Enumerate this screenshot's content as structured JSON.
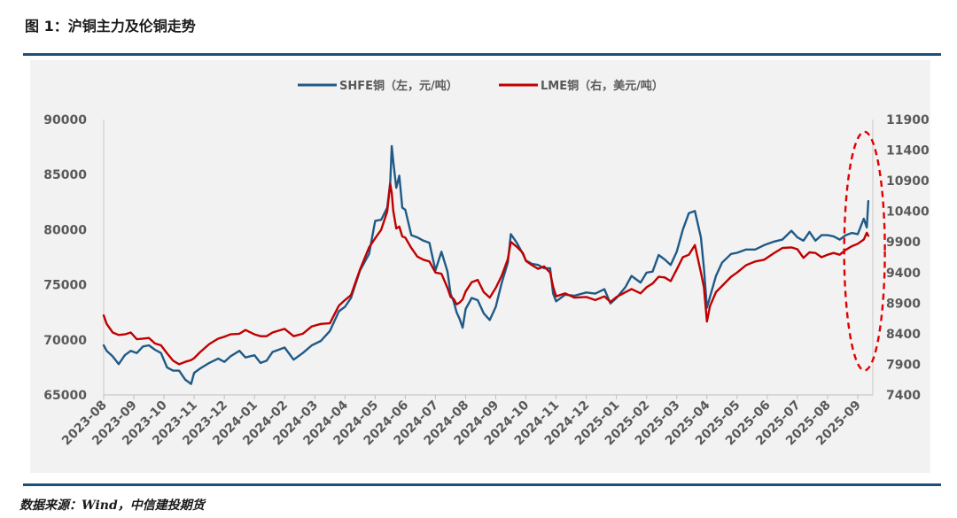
{
  "figure": {
    "title": "图 1：沪铜主力及伦铜走势",
    "source": "数据来源：Wind，中信建投期货"
  },
  "colors": {
    "shfe": "#1f5a87",
    "lme": "#c00000",
    "highlight": "#e00000",
    "rule": "#1f4e79",
    "panel": "#f2f2f2",
    "axis_text": "#595959"
  },
  "chart_data": {
    "type": "line",
    "title": "图 1：沪铜主力及伦铜走势",
    "legend_position": "top-center",
    "grid": false,
    "x_axis": {
      "categories": [
        "2023-08",
        "2023-09",
        "2023-10",
        "2023-11",
        "2023-12",
        "2024-01",
        "2024-02",
        "2024-03",
        "2024-04",
        "2024-05",
        "2024-06",
        "2024-07",
        "2024-08",
        "2024-09",
        "2024-10",
        "2024-11",
        "2024-12",
        "2025-01",
        "2025-02",
        "2025-03",
        "2025-04",
        "2025-05",
        "2025-06",
        "2025-07",
        "2025-08",
        "2025-09"
      ],
      "range": [
        0,
        25.5
      ]
    },
    "y_left": {
      "label": "左，元/吨",
      "min": 65000,
      "max": 90000,
      "ticks": [
        65000,
        70000,
        75000,
        80000,
        85000,
        90000
      ]
    },
    "y_right": {
      "label": "右，美元/吨",
      "min": 7400,
      "max": 11900,
      "ticks": [
        7400,
        7900,
        8400,
        8900,
        9400,
        9900,
        10400,
        10900,
        11400,
        11900
      ]
    },
    "series": [
      {
        "name": "SHFE铜（左，元/吨）",
        "axis": "left",
        "color": "#1f5a87",
        "points": [
          [
            0,
            69500
          ],
          [
            0.1,
            69000
          ],
          [
            0.3,
            68500
          ],
          [
            0.5,
            67800
          ],
          [
            0.7,
            68600
          ],
          [
            0.9,
            69000
          ],
          [
            1.1,
            68800
          ],
          [
            1.3,
            69400
          ],
          [
            1.5,
            69500
          ],
          [
            1.7,
            69100
          ],
          [
            1.9,
            68800
          ],
          [
            2.1,
            67500
          ],
          [
            2.3,
            67200
          ],
          [
            2.5,
            67200
          ],
          [
            2.7,
            66400
          ],
          [
            2.9,
            66000
          ],
          [
            3.0,
            67000
          ],
          [
            3.2,
            67400
          ],
          [
            3.5,
            67900
          ],
          [
            3.8,
            68300
          ],
          [
            4.0,
            68000
          ],
          [
            4.2,
            68500
          ],
          [
            4.5,
            69000
          ],
          [
            4.7,
            68400
          ],
          [
            5.0,
            68600
          ],
          [
            5.2,
            67900
          ],
          [
            5.4,
            68100
          ],
          [
            5.6,
            68900
          ],
          [
            6.0,
            69300
          ],
          [
            6.3,
            68200
          ],
          [
            6.6,
            68800
          ],
          [
            6.9,
            69500
          ],
          [
            7.2,
            69900
          ],
          [
            7.5,
            70800
          ],
          [
            7.8,
            72600
          ],
          [
            8.0,
            73000
          ],
          [
            8.2,
            73800
          ],
          [
            8.5,
            76300
          ],
          [
            8.8,
            77800
          ],
          [
            9.0,
            80800
          ],
          [
            9.2,
            80900
          ],
          [
            9.4,
            82000
          ],
          [
            9.5,
            84300
          ],
          [
            9.55,
            87600
          ],
          [
            9.6,
            86200
          ],
          [
            9.7,
            83800
          ],
          [
            9.8,
            84900
          ],
          [
            9.9,
            82000
          ],
          [
            10.0,
            81800
          ],
          [
            10.2,
            79500
          ],
          [
            10.4,
            79300
          ],
          [
            10.6,
            79000
          ],
          [
            10.8,
            78800
          ],
          [
            11.0,
            76300
          ],
          [
            11.2,
            78000
          ],
          [
            11.4,
            76200
          ],
          [
            11.5,
            74200
          ],
          [
            11.6,
            73500
          ],
          [
            11.7,
            72500
          ],
          [
            11.8,
            71900
          ],
          [
            11.9,
            71100
          ],
          [
            12.0,
            72800
          ],
          [
            12.2,
            73800
          ],
          [
            12.4,
            73600
          ],
          [
            12.6,
            72400
          ],
          [
            12.8,
            71800
          ],
          [
            13.0,
            73000
          ],
          [
            13.2,
            75200
          ],
          [
            13.4,
            77000
          ],
          [
            13.5,
            79600
          ],
          [
            13.7,
            78800
          ],
          [
            13.9,
            77800
          ],
          [
            14.0,
            77200
          ],
          [
            14.2,
            76900
          ],
          [
            14.4,
            76800
          ],
          [
            14.6,
            76500
          ],
          [
            14.8,
            76500
          ],
          [
            14.9,
            74200
          ],
          [
            15.0,
            73500
          ],
          [
            15.3,
            74100
          ],
          [
            15.6,
            74000
          ],
          [
            16.0,
            74300
          ],
          [
            16.3,
            74200
          ],
          [
            16.6,
            74600
          ],
          [
            16.8,
            73300
          ],
          [
            17.0,
            73800
          ],
          [
            17.3,
            74800
          ],
          [
            17.5,
            75800
          ],
          [
            17.8,
            75200
          ],
          [
            18.0,
            76100
          ],
          [
            18.2,
            76200
          ],
          [
            18.4,
            77700
          ],
          [
            18.6,
            77300
          ],
          [
            18.8,
            76800
          ],
          [
            19.0,
            78000
          ],
          [
            19.2,
            80000
          ],
          [
            19.4,
            81500
          ],
          [
            19.6,
            81700
          ],
          [
            19.8,
            79300
          ],
          [
            19.9,
            76500
          ],
          [
            20.0,
            72900
          ],
          [
            20.1,
            73900
          ],
          [
            20.3,
            75800
          ],
          [
            20.5,
            77000
          ],
          [
            20.8,
            77800
          ],
          [
            21.0,
            77900
          ],
          [
            21.3,
            78200
          ],
          [
            21.6,
            78200
          ],
          [
            21.9,
            78600
          ],
          [
            22.2,
            78900
          ],
          [
            22.5,
            79100
          ],
          [
            22.8,
            79900
          ],
          [
            23.0,
            79300
          ],
          [
            23.2,
            79000
          ],
          [
            23.4,
            79800
          ],
          [
            23.6,
            79000
          ],
          [
            23.8,
            79500
          ],
          [
            24.0,
            79500
          ],
          [
            24.2,
            79400
          ],
          [
            24.4,
            79100
          ],
          [
            24.6,
            79500
          ],
          [
            24.8,
            79700
          ],
          [
            25.0,
            79600
          ],
          [
            25.2,
            81000
          ],
          [
            25.3,
            80200
          ],
          [
            25.35,
            82600
          ]
        ]
      },
      {
        "name": "LME铜（右，美元/吨）",
        "axis": "right",
        "color": "#c00000",
        "points": [
          [
            0,
            8700
          ],
          [
            0.1,
            8560
          ],
          [
            0.3,
            8420
          ],
          [
            0.5,
            8380
          ],
          [
            0.7,
            8390
          ],
          [
            0.9,
            8420
          ],
          [
            1.1,
            8310
          ],
          [
            1.3,
            8320
          ],
          [
            1.5,
            8330
          ],
          [
            1.7,
            8240
          ],
          [
            1.9,
            8210
          ],
          [
            2.1,
            8080
          ],
          [
            2.3,
            7960
          ],
          [
            2.5,
            7900
          ],
          [
            2.7,
            7940
          ],
          [
            2.9,
            7970
          ],
          [
            3.0,
            8000
          ],
          [
            3.2,
            8100
          ],
          [
            3.5,
            8230
          ],
          [
            3.8,
            8320
          ],
          [
            4.0,
            8350
          ],
          [
            4.2,
            8390
          ],
          [
            4.5,
            8400
          ],
          [
            4.7,
            8460
          ],
          [
            5.0,
            8390
          ],
          [
            5.2,
            8360
          ],
          [
            5.4,
            8360
          ],
          [
            5.6,
            8420
          ],
          [
            6.0,
            8480
          ],
          [
            6.3,
            8360
          ],
          [
            6.6,
            8400
          ],
          [
            6.9,
            8520
          ],
          [
            7.2,
            8560
          ],
          [
            7.5,
            8570
          ],
          [
            7.8,
            8860
          ],
          [
            8.0,
            8950
          ],
          [
            8.2,
            9030
          ],
          [
            8.5,
            9450
          ],
          [
            8.8,
            9810
          ],
          [
            9.0,
            9960
          ],
          [
            9.2,
            10100
          ],
          [
            9.4,
            10400
          ],
          [
            9.5,
            10850
          ],
          [
            9.55,
            10700
          ],
          [
            9.6,
            10410
          ],
          [
            9.7,
            10120
          ],
          [
            9.8,
            10150
          ],
          [
            9.9,
            9990
          ],
          [
            10.0,
            9970
          ],
          [
            10.2,
            9800
          ],
          [
            10.4,
            9660
          ],
          [
            10.6,
            9610
          ],
          [
            10.8,
            9580
          ],
          [
            11.0,
            9400
          ],
          [
            11.2,
            9380
          ],
          [
            11.4,
            9150
          ],
          [
            11.5,
            9000
          ],
          [
            11.6,
            8970
          ],
          [
            11.7,
            8880
          ],
          [
            11.8,
            8910
          ],
          [
            11.9,
            8960
          ],
          [
            12.0,
            9090
          ],
          [
            12.2,
            9240
          ],
          [
            12.4,
            9280
          ],
          [
            12.6,
            9080
          ],
          [
            12.8,
            8990
          ],
          [
            13.0,
            9150
          ],
          [
            13.2,
            9350
          ],
          [
            13.4,
            9620
          ],
          [
            13.5,
            9900
          ],
          [
            13.7,
            9820
          ],
          [
            13.9,
            9720
          ],
          [
            14.0,
            9590
          ],
          [
            14.2,
            9520
          ],
          [
            14.4,
            9460
          ],
          [
            14.6,
            9500
          ],
          [
            14.8,
            9400
          ],
          [
            14.9,
            9170
          ],
          [
            15.0,
            9010
          ],
          [
            15.3,
            9060
          ],
          [
            15.6,
            8990
          ],
          [
            16.0,
            9000
          ],
          [
            16.3,
            8950
          ],
          [
            16.6,
            9010
          ],
          [
            16.8,
            8920
          ],
          [
            17.0,
            9000
          ],
          [
            17.3,
            9080
          ],
          [
            17.5,
            9130
          ],
          [
            17.8,
            9060
          ],
          [
            18.0,
            9160
          ],
          [
            18.2,
            9220
          ],
          [
            18.4,
            9330
          ],
          [
            18.6,
            9320
          ],
          [
            18.8,
            9260
          ],
          [
            19.0,
            9450
          ],
          [
            19.2,
            9650
          ],
          [
            19.4,
            9690
          ],
          [
            19.6,
            9850
          ],
          [
            19.8,
            9400
          ],
          [
            19.9,
            9160
          ],
          [
            20.0,
            8600
          ],
          [
            20.1,
            8850
          ],
          [
            20.3,
            9080
          ],
          [
            20.5,
            9180
          ],
          [
            20.8,
            9330
          ],
          [
            21.0,
            9400
          ],
          [
            21.3,
            9520
          ],
          [
            21.6,
            9580
          ],
          [
            21.9,
            9610
          ],
          [
            22.2,
            9710
          ],
          [
            22.5,
            9800
          ],
          [
            22.8,
            9810
          ],
          [
            23.0,
            9780
          ],
          [
            23.2,
            9640
          ],
          [
            23.4,
            9730
          ],
          [
            23.6,
            9720
          ],
          [
            23.8,
            9650
          ],
          [
            24.0,
            9690
          ],
          [
            24.2,
            9720
          ],
          [
            24.4,
            9690
          ],
          [
            24.6,
            9770
          ],
          [
            24.8,
            9830
          ],
          [
            25.0,
            9870
          ],
          [
            25.2,
            9940
          ],
          [
            25.3,
            10050
          ],
          [
            25.35,
            10000
          ]
        ]
      }
    ],
    "annotations": [
      {
        "type": "dashed-ellipse",
        "description": "highlights latest data",
        "x_range": [
          24.55,
          25.9
        ],
        "y_right_range": [
          7800,
          11700
        ]
      }
    ]
  }
}
